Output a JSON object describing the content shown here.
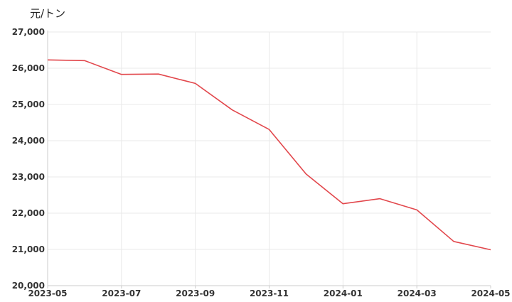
{
  "chart_data": {
    "type": "line",
    "ylabel": "元/トン",
    "x": [
      "2023-05",
      "2023-06",
      "2023-07",
      "2023-08",
      "2023-09",
      "2023-10",
      "2023-11",
      "2023-12",
      "2024-01",
      "2024-02",
      "2024-03",
      "2024-04",
      "2024-05"
    ],
    "values": [
      26230,
      26210,
      25830,
      25840,
      25580,
      24850,
      24310,
      23080,
      22260,
      22400,
      22090,
      21220,
      20990
    ],
    "x_tick_labels": [
      "2023-05",
      "2023-07",
      "2023-09",
      "2023-11",
      "2024-01",
      "2024-03",
      "2024-05"
    ],
    "y_tick_labels": [
      "20,000",
      "21,000",
      "22,000",
      "23,000",
      "24,000",
      "25,000",
      "26,000",
      "27,000"
    ],
    "y_ticks": [
      20000,
      21000,
      22000,
      23000,
      24000,
      25000,
      26000,
      27000
    ],
    "ylim": [
      20000,
      27000
    ],
    "grid": true,
    "line_color": "#e2474c",
    "grid_color": "#e9e9e9",
    "axis_color": "#cccccc"
  }
}
